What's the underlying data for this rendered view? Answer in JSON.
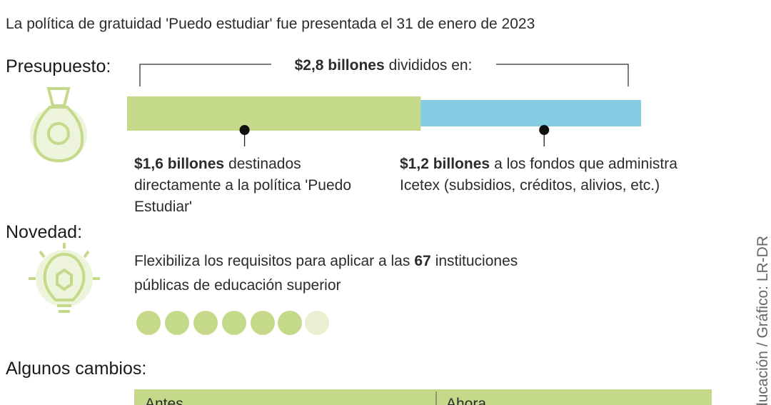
{
  "subtitle": "La política de gratuidad 'Puedo estudiar' fue presentada el 31 de enero de 2023",
  "budget": {
    "heading": "Presupuesto:",
    "total": {
      "value": 2.8,
      "label": "$2,8 billones",
      "text": "divididos en:"
    },
    "segments": [
      {
        "value": 1.6,
        "color": "#c5d98a",
        "label": "$1,6 billones",
        "lines": [
          "destinados",
          "directamente a la política 'Puedo",
          "Estudiar'"
        ]
      },
      {
        "value": 1.2,
        "color": "#86cde3",
        "label": "$1,2 billones",
        "lines": [
          "a los fondos que administra",
          "Icetex (subsidios, créditos, alivios, etc.)"
        ]
      }
    ]
  },
  "novelty": {
    "heading": "Novedad:",
    "before": "Flexibiliza los requisitos para aplicar a las",
    "number": "67",
    "after": "instituciones",
    "line2": "públicas de educación superior"
  },
  "changes": {
    "heading": "Algunos cambios:",
    "columns": [
      "Antes",
      "Ahora"
    ]
  },
  "credit": "ducación / Gráfico: LR-DR"
}
